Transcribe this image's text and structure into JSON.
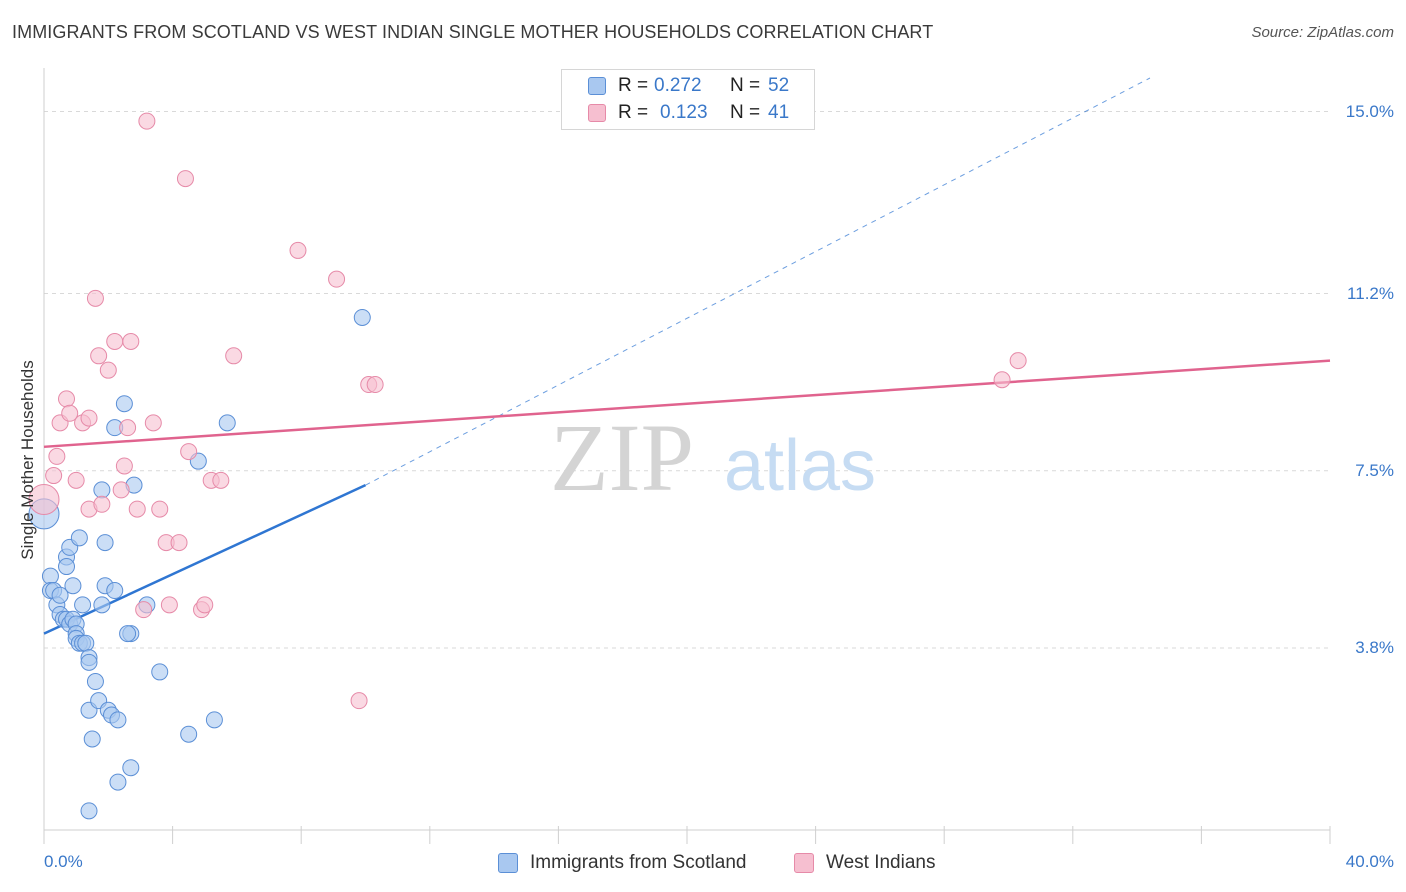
{
  "header": {
    "title": "IMMIGRANTS FROM SCOTLAND VS WEST INDIAN SINGLE MOTHER HOUSEHOLDS CORRELATION CHART",
    "source": "Source: ZipAtlas.com"
  },
  "watermark": {
    "zip": "ZIP",
    "atlas": "atlas"
  },
  "legend": {
    "rows": [
      {
        "r_label": "R =",
        "r_value": "0.272",
        "n_label": "N =",
        "n_value": "52"
      },
      {
        "r_label": "R =",
        "r_value": "0.123",
        "n_label": "N =",
        "n_value": "41"
      }
    ]
  },
  "colors": {
    "blue_fill": "#a9c8f0",
    "blue_stroke": "#5b8fd6",
    "blue_line": "#2f76d2",
    "pink_fill": "#f6bfd0",
    "pink_stroke": "#e68aa8",
    "pink_line": "#e0638e",
    "tick_text": "#3a78c9",
    "grid": "#d9d9d9"
  },
  "chart_data": {
    "type": "scatter",
    "title": "IMMIGRANTS FROM SCOTLAND VS WEST INDIAN SINGLE MOTHER HOUSEHOLDS CORRELATION CHART",
    "xlabel": "",
    "ylabel": "Single Mother Households",
    "xlim": [
      0,
      40
    ],
    "ylim": [
      0,
      15.7
    ],
    "x_tick_labels": [
      "0.0%",
      "40.0%"
    ],
    "y_ticks": [
      3.8,
      7.5,
      11.2,
      15.0
    ],
    "y_tick_labels": [
      "3.8%",
      "7.5%",
      "11.2%",
      "15.0%"
    ],
    "grid": true,
    "legend_position": "top-center",
    "series": [
      {
        "name": "Immigrants from Scotland",
        "color": "#a9c8f0",
        "points": [
          [
            0.0,
            6.6
          ],
          [
            0.2,
            5.3
          ],
          [
            0.2,
            5.0
          ],
          [
            0.3,
            5.0
          ],
          [
            0.4,
            4.7
          ],
          [
            0.5,
            4.5
          ],
          [
            0.5,
            4.9
          ],
          [
            0.6,
            4.4
          ],
          [
            0.7,
            5.7
          ],
          [
            0.7,
            4.4
          ],
          [
            0.7,
            5.5
          ],
          [
            0.8,
            4.3
          ],
          [
            0.8,
            5.9
          ],
          [
            0.9,
            5.1
          ],
          [
            0.9,
            4.4
          ],
          [
            1.0,
            4.3
          ],
          [
            1.0,
            4.1
          ],
          [
            1.0,
            4.0
          ],
          [
            1.1,
            3.9
          ],
          [
            1.1,
            6.1
          ],
          [
            1.2,
            3.9
          ],
          [
            1.2,
            4.7
          ],
          [
            1.3,
            3.9
          ],
          [
            1.4,
            3.6
          ],
          [
            1.4,
            3.5
          ],
          [
            1.4,
            2.5
          ],
          [
            1.5,
            1.9
          ],
          [
            1.6,
            3.1
          ],
          [
            1.7,
            2.7
          ],
          [
            1.8,
            4.7
          ],
          [
            1.8,
            7.1
          ],
          [
            1.9,
            6.0
          ],
          [
            1.9,
            5.1
          ],
          [
            2.0,
            2.5
          ],
          [
            2.1,
            2.4
          ],
          [
            2.2,
            5.0
          ],
          [
            2.2,
            8.4
          ],
          [
            2.3,
            2.3
          ],
          [
            2.3,
            1.0
          ],
          [
            2.5,
            8.9
          ],
          [
            2.7,
            1.3
          ],
          [
            2.7,
            4.1
          ],
          [
            2.8,
            7.2
          ],
          [
            3.2,
            4.7
          ],
          [
            3.6,
            3.3
          ],
          [
            4.5,
            2.0
          ],
          [
            4.8,
            7.7
          ],
          [
            5.3,
            2.3
          ],
          [
            5.7,
            8.5
          ],
          [
            9.9,
            10.7
          ],
          [
            1.4,
            0.4
          ],
          [
            2.6,
            4.1
          ]
        ]
      },
      {
        "name": "West Indians",
        "color": "#f6bfd0",
        "points": [
          [
            0.0,
            6.9
          ],
          [
            0.3,
            7.4
          ],
          [
            0.4,
            7.8
          ],
          [
            0.5,
            8.5
          ],
          [
            0.7,
            9.0
          ],
          [
            0.8,
            8.7
          ],
          [
            1.0,
            7.3
          ],
          [
            1.2,
            8.5
          ],
          [
            1.4,
            6.7
          ],
          [
            1.4,
            8.6
          ],
          [
            1.6,
            11.1
          ],
          [
            1.7,
            9.9
          ],
          [
            1.8,
            6.8
          ],
          [
            2.0,
            9.6
          ],
          [
            2.2,
            10.2
          ],
          [
            2.4,
            7.1
          ],
          [
            2.5,
            7.6
          ],
          [
            2.6,
            8.4
          ],
          [
            2.7,
            10.2
          ],
          [
            2.9,
            6.7
          ],
          [
            3.1,
            4.6
          ],
          [
            3.4,
            8.5
          ],
          [
            3.6,
            6.7
          ],
          [
            3.8,
            6.0
          ],
          [
            3.9,
            4.7
          ],
          [
            4.2,
            6.0
          ],
          [
            4.4,
            13.6
          ],
          [
            4.5,
            7.9
          ],
          [
            4.9,
            4.6
          ],
          [
            5.0,
            4.7
          ],
          [
            5.2,
            7.3
          ],
          [
            5.5,
            7.3
          ],
          [
            5.9,
            9.9
          ],
          [
            7.9,
            12.1
          ],
          [
            9.1,
            11.5
          ],
          [
            9.8,
            2.7
          ],
          [
            10.1,
            9.3
          ],
          [
            10.3,
            9.3
          ],
          [
            29.8,
            9.4
          ],
          [
            30.3,
            9.8
          ],
          [
            3.2,
            14.8
          ]
        ]
      }
    ],
    "trend_lines": [
      {
        "series": "Immigrants from Scotland",
        "x": [
          0,
          10.0
        ],
        "y": [
          4.1,
          7.2
        ],
        "dashed_extension_to": [
          34.4,
          15.7
        ]
      },
      {
        "series": "West Indians",
        "x": [
          0,
          40
        ],
        "y": [
          8.0,
          9.8
        ]
      }
    ]
  }
}
